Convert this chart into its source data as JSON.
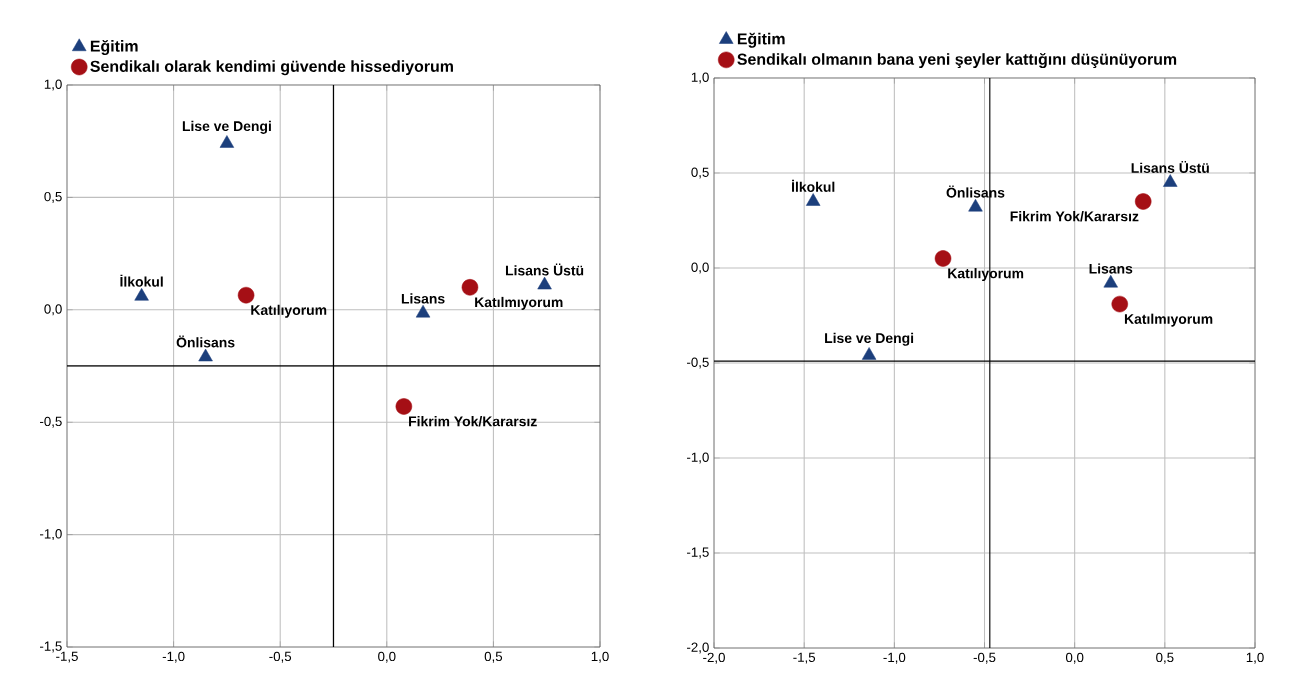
{
  "chart_data": [
    {
      "type": "scatter",
      "grid": true,
      "legend": "top left",
      "xlim": [
        -1.5,
        1.0
      ],
      "ylim": [
        -1.5,
        1.0
      ],
      "xticks": [
        {
          "value": -1.5,
          "label": "-1,5"
        },
        {
          "value": -1.0,
          "label": "-1,0"
        },
        {
          "value": -0.5,
          "label": "-0,5"
        },
        {
          "value": 0.0,
          "label": "0,0"
        },
        {
          "value": 0.5,
          "label": "0,5"
        },
        {
          "value": 1.0,
          "label": "1,0"
        }
      ],
      "yticks": [
        {
          "value": -1.5,
          "label": "-1,5"
        },
        {
          "value": -1.0,
          "label": "-1,0"
        },
        {
          "value": -0.5,
          "label": "-0,5"
        },
        {
          "value": 0.0,
          "label": "0,0"
        },
        {
          "value": 0.5,
          "label": "0,5"
        },
        {
          "value": 1.0,
          "label": "1,0"
        }
      ],
      "ref_lines": [
        {
          "axis": "x",
          "value": -0.25,
          "color": "#000000"
        },
        {
          "axis": "y",
          "value": -0.25,
          "color": "#000000"
        }
      ],
      "series": [
        {
          "name": "Eğitim",
          "color": "#1c3f7c",
          "marker": "triangle",
          "x": [
            -1.15,
            -0.75,
            -0.85,
            0.17,
            0.74
          ],
          "values": [
            0.06,
            0.74,
            -0.21,
            -0.015,
            0.11
          ],
          "value_labels": [
            "İlkokul",
            "Lise ve Dengi",
            "Önlisans",
            "Lisans",
            "Lisans Üstü"
          ]
        },
        {
          "name": "Sendikalı olarak kendimi güvende hissediyorum",
          "color": "#a50f15",
          "marker": "circle",
          "x": [
            -0.66,
            0.08,
            0.39
          ],
          "values": [
            0.065,
            -0.43,
            0.1
          ],
          "value_labels": [
            "Katılıyorum",
            "Fikrim Yok/Kararsız",
            "Katılmıyorum"
          ]
        }
      ]
    },
    {
      "type": "scatter",
      "grid": true,
      "legend": "top left",
      "xlim": [
        -2.0,
        1.0
      ],
      "ylim": [
        -2.0,
        1.0
      ],
      "xticks": [
        {
          "value": -2.0,
          "label": "-2,0"
        },
        {
          "value": -1.5,
          "label": "-1,5"
        },
        {
          "value": -1.0,
          "label": "-1,0"
        },
        {
          "value": -0.5,
          "label": "-0,5"
        },
        {
          "value": 0.0,
          "label": "0,0"
        },
        {
          "value": 0.5,
          "label": "0,5"
        },
        {
          "value": 1.0,
          "label": "1,0"
        }
      ],
      "yticks": [
        {
          "value": -2.0,
          "label": "-2,0"
        },
        {
          "value": -1.5,
          "label": "-1,5"
        },
        {
          "value": -1.0,
          "label": "-1,0"
        },
        {
          "value": -0.5,
          "label": "-0,5"
        },
        {
          "value": 0.0,
          "label": "0,0"
        },
        {
          "value": 0.5,
          "label": "0,5"
        },
        {
          "value": 1.0,
          "label": "1,0"
        }
      ],
      "ref_lines": [
        {
          "axis": "x",
          "value": -0.47,
          "color": "#000000"
        },
        {
          "axis": "y",
          "value": -0.49,
          "color": "#000000"
        }
      ],
      "series": [
        {
          "name": "Eğitim",
          "color": "#1c3f7c",
          "marker": "triangle",
          "x": [
            -1.45,
            -1.14,
            -0.55,
            0.2,
            0.53
          ],
          "values": [
            0.35,
            -0.46,
            0.32,
            -0.08,
            0.45
          ],
          "value_labels": [
            "İlkokul",
            "Lise ve Dengi",
            "Önlisans",
            "Lisans",
            "Lisans Üstü"
          ]
        },
        {
          "name": "Sendikalı olmanın bana yeni şeyler kattığını düşünüyorum",
          "color": "#a50f15",
          "marker": "circle",
          "x": [
            -0.73,
            0.38,
            0.25
          ],
          "values": [
            0.05,
            0.35,
            -0.19
          ],
          "value_labels": [
            "Katılıyorum",
            "Fikrim Yok/Kararsız",
            "Katılmıyorum"
          ]
        }
      ]
    }
  ]
}
